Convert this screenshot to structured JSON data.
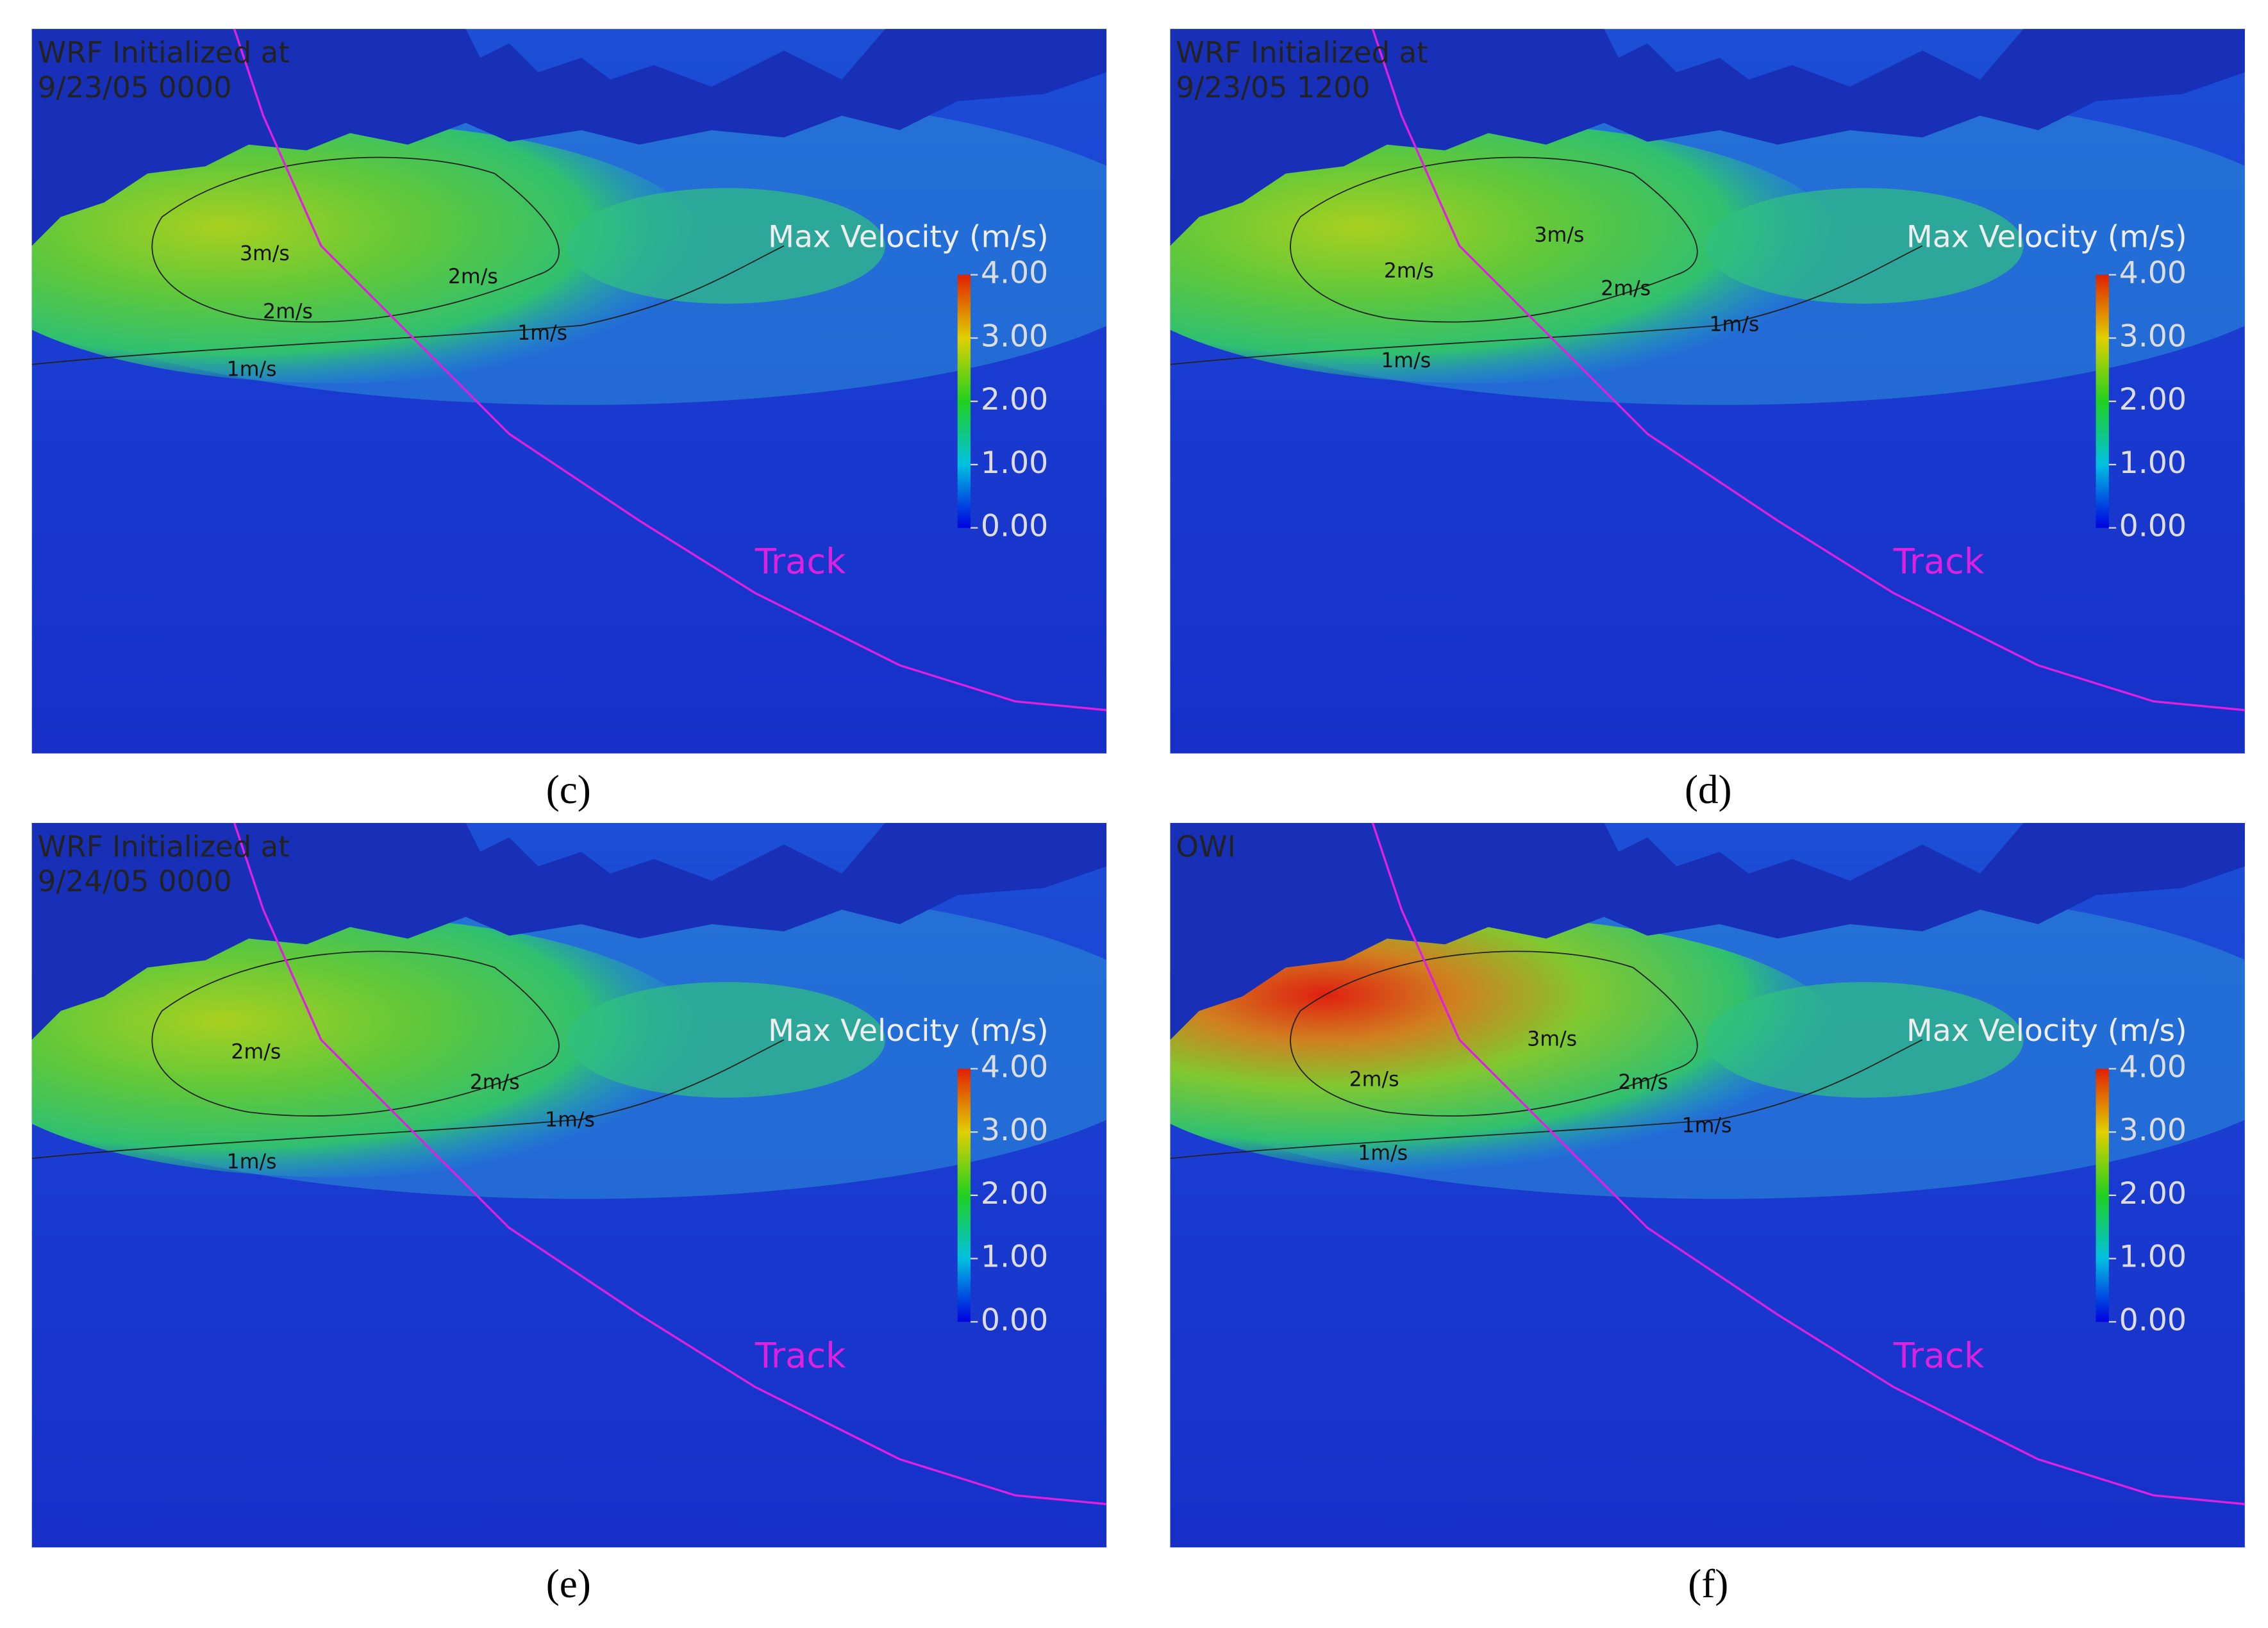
{
  "panels": [
    {
      "label": "(c)",
      "header": [
        "WRF Initialized at",
        "9/23/05 0000"
      ],
      "contours": [
        "3m/s",
        "2m/s",
        "2m/s",
        "1m/s",
        "1m/s"
      ],
      "colorbar_title": "Max Velocity  (m/s)",
      "track_label": "Track"
    },
    {
      "label": "(d)",
      "header": [
        "WRF Initialized at",
        "9/23/05 1200"
      ],
      "contours": [
        "3m/s",
        "2m/s",
        "2m/s",
        "1m/s",
        "1m/s"
      ],
      "colorbar_title": "Max Velocity  (m/s)",
      "track_label": "Track"
    },
    {
      "label": "(e)",
      "header": [
        "WRF Initialized at",
        "9/24/05 0000"
      ],
      "contours": [
        "2m/s",
        "2m/s",
        "1m/s",
        "1m/s"
      ],
      "colorbar_title": "Max Velocity  (m/s)",
      "track_label": "Track"
    },
    {
      "label": "(f)",
      "header": [
        "OWI"
      ],
      "contours": [
        "3m/s",
        "2m/s",
        "2m/s",
        "1m/s",
        "1m/s"
      ],
      "colorbar_title": "Max Velocity  (m/s)",
      "track_label": "Track"
    }
  ],
  "colorbar": {
    "ticks": [
      {
        "value": 4,
        "label": "4.00"
      },
      {
        "value": 3,
        "label": "3.00"
      },
      {
        "value": 2,
        "label": "2.00"
      },
      {
        "value": 1,
        "label": "1.00"
      },
      {
        "value": 0,
        "label": "0.00"
      }
    ]
  }
}
